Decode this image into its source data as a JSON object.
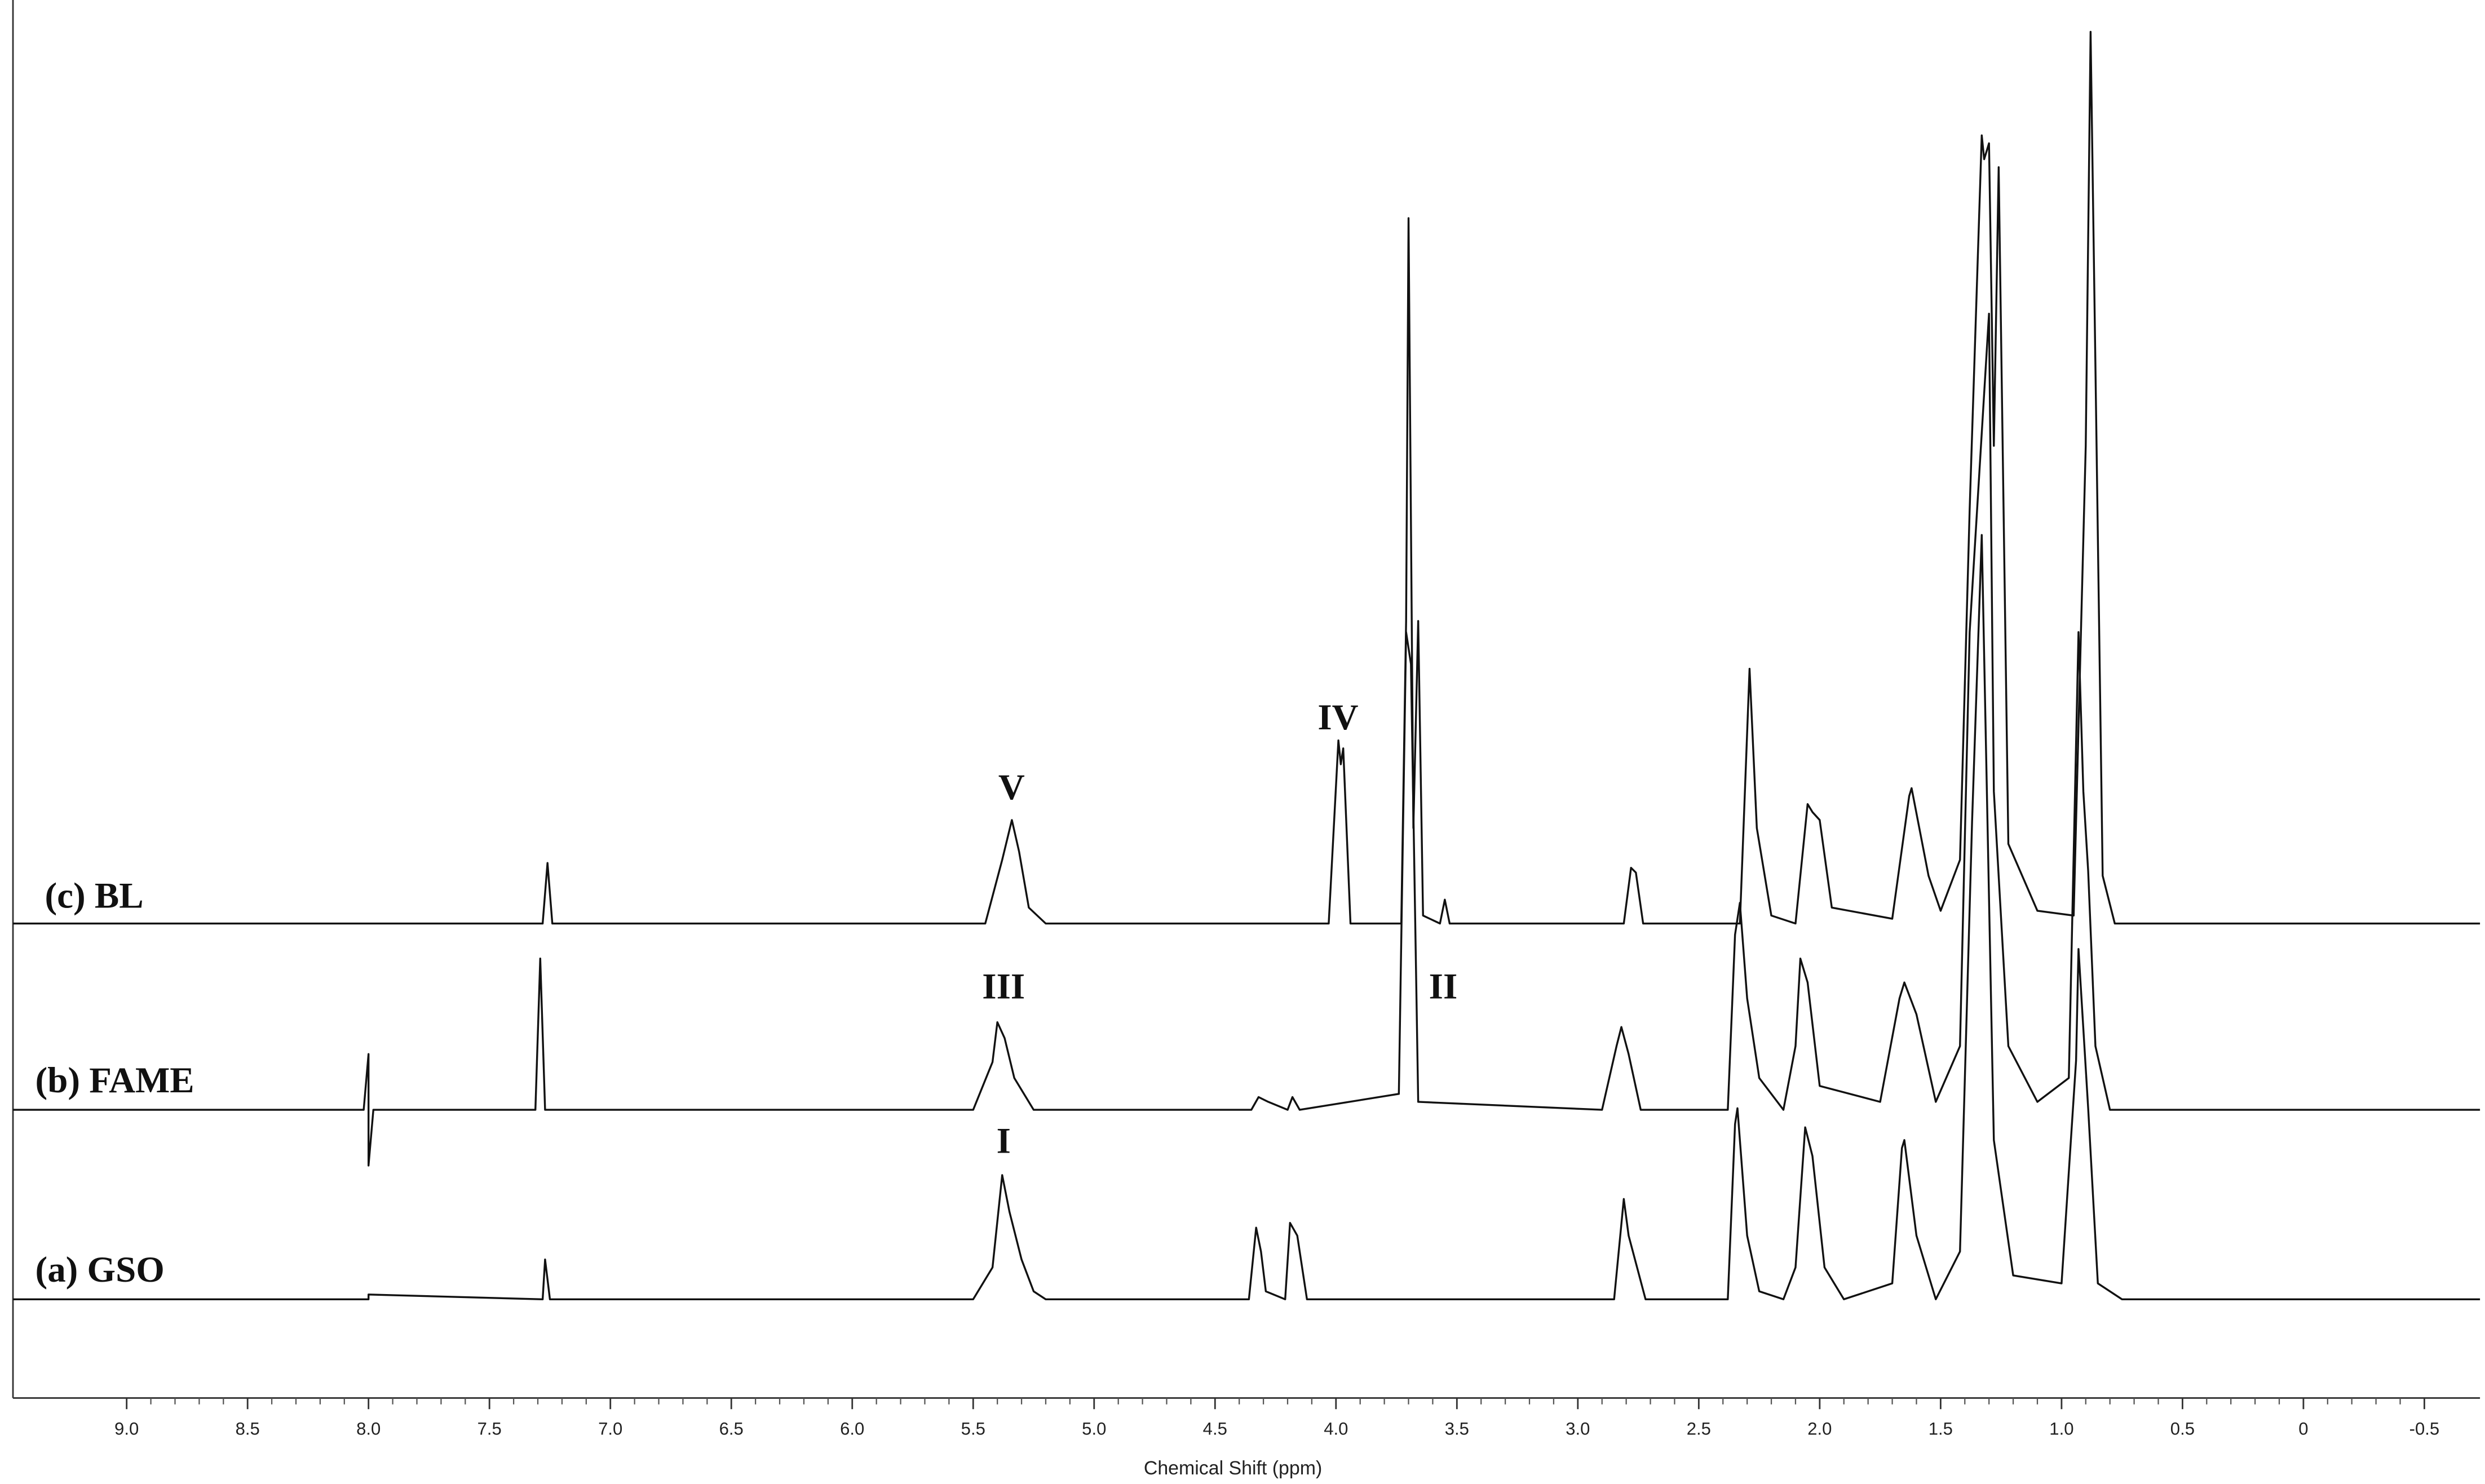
{
  "chart_data": {
    "type": "line",
    "x_label": "Chemical Shift (ppm)",
    "xlim": [
      9.47,
      -0.73
    ],
    "xticks": [
      {
        "value": 9,
        "label": "9.0"
      },
      8.5,
      {
        "value": 8,
        "label": "8.0"
      },
      7.5,
      {
        "value": 7,
        "label": "7.0"
      },
      6.5,
      {
        "value": 6,
        "label": "6.0"
      },
      5.5,
      {
        "value": 5,
        "label": "5.0"
      },
      4.5,
      {
        "value": 4,
        "label": "4.0"
      },
      3.5,
      {
        "value": 3,
        "label": "3.0"
      },
      2.5,
      {
        "value": 2,
        "label": "2.0"
      },
      1.5,
      {
        "value": 1,
        "label": "1.0"
      },
      0.5,
      0,
      -0.5
    ],
    "annotations": [
      "V",
      "IV",
      "III",
      "II",
      "I"
    ],
    "series": [
      {
        "name": "(c) BL",
        "color": "#111111",
        "x": [
          9.47,
          8.0,
          7.28,
          7.26,
          7.24,
          5.45,
          5.38,
          5.34,
          5.31,
          5.27,
          5.2,
          4.03,
          3.99,
          3.98,
          3.97,
          3.94,
          3.73,
          3.71,
          3.7,
          3.68,
          3.66,
          3.64,
          3.57,
          3.55,
          3.53,
          2.81,
          2.78,
          2.76,
          2.73,
          2.33,
          2.3,
          2.29,
          2.26,
          2.2,
          2.1,
          2.05,
          2.03,
          2.0,
          1.95,
          1.7,
          1.63,
          1.62,
          1.55,
          1.5,
          1.42,
          1.38,
          1.33,
          1.32,
          1.3,
          1.28,
          1.26,
          1.22,
          1.1,
          0.95,
          0.9,
          0.88,
          0.86,
          0.83,
          0.78,
          -0.73
        ],
        "values": [
          0,
          0,
          0,
          38,
          0,
          0,
          40,
          65,
          45,
          10,
          0,
          0,
          115,
          100,
          110,
          0,
          0,
          190,
          443,
          60,
          190,
          5,
          0,
          15,
          0,
          0,
          35,
          32,
          0,
          0,
          120,
          160,
          60,
          5,
          0,
          75,
          70,
          65,
          10,
          3,
          80,
          85,
          30,
          8,
          40,
          260,
          495,
          480,
          490,
          300,
          475,
          50,
          8,
          5,
          300,
          560,
          350,
          30,
          0,
          0
        ]
      },
      {
        "name": "(b) FAME",
        "color": "#111111",
        "x": [
          9.47,
          8.02,
          8.0,
          8.0,
          7.98,
          7.31,
          7.29,
          7.27,
          5.5,
          5.42,
          5.4,
          5.37,
          5.33,
          5.25,
          4.35,
          4.32,
          4.28,
          4.2,
          4.18,
          4.15,
          3.74,
          3.71,
          3.7,
          3.69,
          3.66,
          2.9,
          2.84,
          2.82,
          2.79,
          2.74,
          2.38,
          2.35,
          2.33,
          2.3,
          2.25,
          2.15,
          2.1,
          2.08,
          2.05,
          2.0,
          1.75,
          1.67,
          1.65,
          1.6,
          1.52,
          1.42,
          1.38,
          1.32,
          1.3,
          1.28,
          1.22,
          1.1,
          0.97,
          0.93,
          0.91,
          0.89,
          0.86,
          0.8,
          -0.73
        ],
        "values": [
          0,
          0,
          35,
          -35,
          0,
          0,
          95,
          0,
          0,
          30,
          55,
          45,
          20,
          0,
          0,
          8,
          5,
          0,
          8,
          0,
          10,
          300,
          290,
          280,
          5,
          0,
          40,
          52,
          35,
          0,
          0,
          110,
          130,
          70,
          20,
          0,
          40,
          95,
          80,
          15,
          5,
          70,
          80,
          60,
          5,
          40,
          300,
          450,
          500,
          200,
          40,
          5,
          20,
          300,
          200,
          150,
          40,
          0,
          0
        ]
      },
      {
        "name": "(a) GSO",
        "color": "#111111",
        "x": [
          9.47,
          8.0,
          8.0,
          7.28,
          7.27,
          7.25,
          5.5,
          5.42,
          5.38,
          5.35,
          5.3,
          5.25,
          5.2,
          4.36,
          4.33,
          4.31,
          4.29,
          4.21,
          4.19,
          4.16,
          4.12,
          2.85,
          2.81,
          2.79,
          2.72,
          2.38,
          2.35,
          2.34,
          2.3,
          2.25,
          2.15,
          2.1,
          2.06,
          2.03,
          1.98,
          1.9,
          1.7,
          1.66,
          1.65,
          1.6,
          1.52,
          1.42,
          1.37,
          1.33,
          1.28,
          1.2,
          1.0,
          0.94,
          0.93,
          0.89,
          0.85,
          0.75,
          -0.73
        ],
        "values": [
          0,
          0,
          3,
          0,
          25,
          0,
          0,
          20,
          78,
          55,
          25,
          5,
          0,
          0,
          45,
          30,
          5,
          0,
          48,
          40,
          0,
          0,
          63,
          40,
          0,
          0,
          110,
          120,
          40,
          5,
          0,
          20,
          108,
          90,
          20,
          0,
          10,
          95,
          100,
          40,
          0,
          30,
          300,
          480,
          100,
          15,
          10,
          150,
          220,
          120,
          10,
          0,
          0
        ]
      }
    ]
  }
}
